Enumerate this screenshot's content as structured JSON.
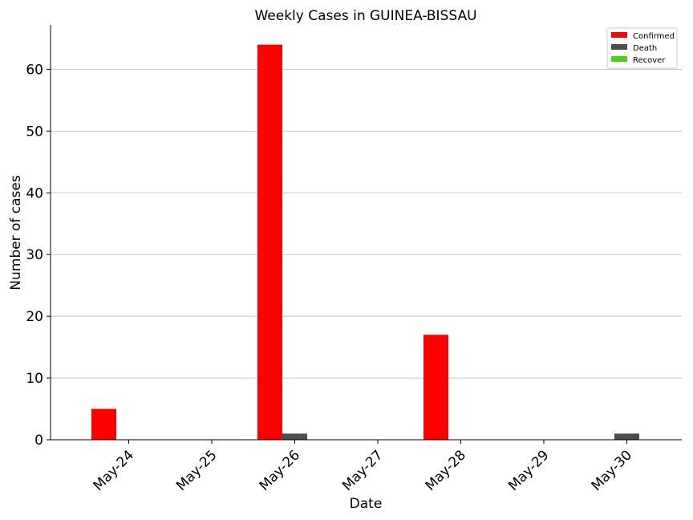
{
  "chart_data": {
    "type": "bar",
    "title": "Weekly Cases in GUINEA-BISSAU",
    "xlabel": "Date",
    "ylabel": "Number of cases",
    "categories": [
      "May-24",
      "May-25",
      "May-26",
      "May-27",
      "May-28",
      "May-29",
      "May-30"
    ],
    "series": [
      {
        "name": "Confirmed",
        "color": "#ff0000",
        "values": [
          5,
          0,
          64,
          0,
          17,
          0,
          0
        ]
      },
      {
        "name": "Death",
        "color": "#4d4d4d",
        "values": [
          0,
          0,
          1,
          0,
          0,
          0,
          1
        ]
      },
      {
        "name": "Recover",
        "color": "#44d414",
        "values": [
          0,
          0,
          0,
          0,
          0,
          0,
          0
        ]
      }
    ],
    "ylim": [
      0,
      67.2
    ],
    "yticks": [
      0,
      10,
      20,
      30,
      40,
      50,
      60
    ],
    "grid": "horizontal",
    "legend": "top-right"
  }
}
